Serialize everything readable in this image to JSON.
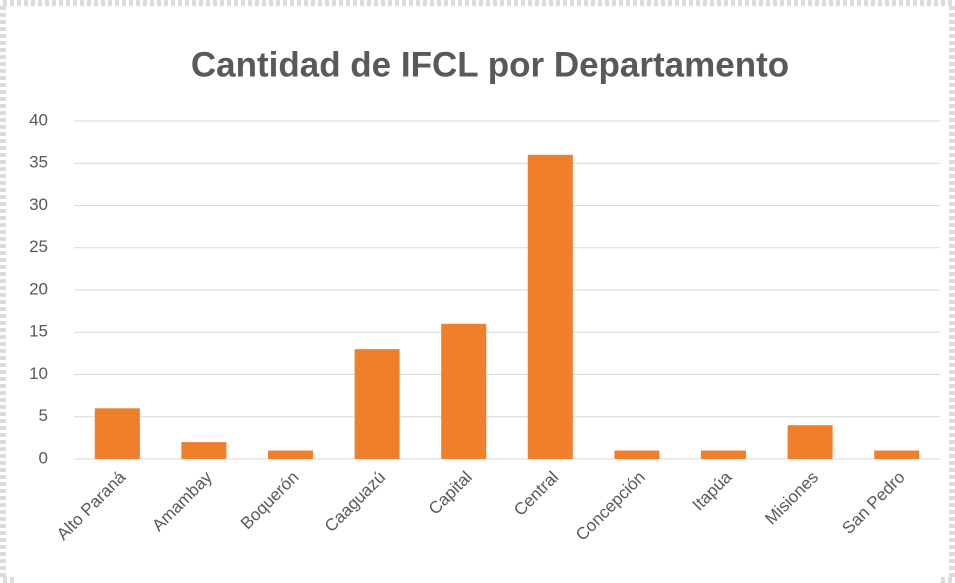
{
  "chart_data": {
    "type": "bar",
    "title": "Cantidad de IFCL por Departamento",
    "categories": [
      "Alto Paraná",
      "Amambay",
      "Boquerón",
      "Caaguazú",
      "Capital",
      "Central",
      "Concepción",
      "Itapúa",
      "Misiones",
      "San Pedro"
    ],
    "values": [
      6,
      2,
      1,
      13,
      16,
      36,
      1,
      1,
      4,
      1
    ],
    "color": "#f07f2c",
    "ylim": [
      0,
      40
    ],
    "yticks": [
      0,
      5,
      10,
      15,
      20,
      25,
      30,
      35,
      40
    ],
    "grid": true
  }
}
